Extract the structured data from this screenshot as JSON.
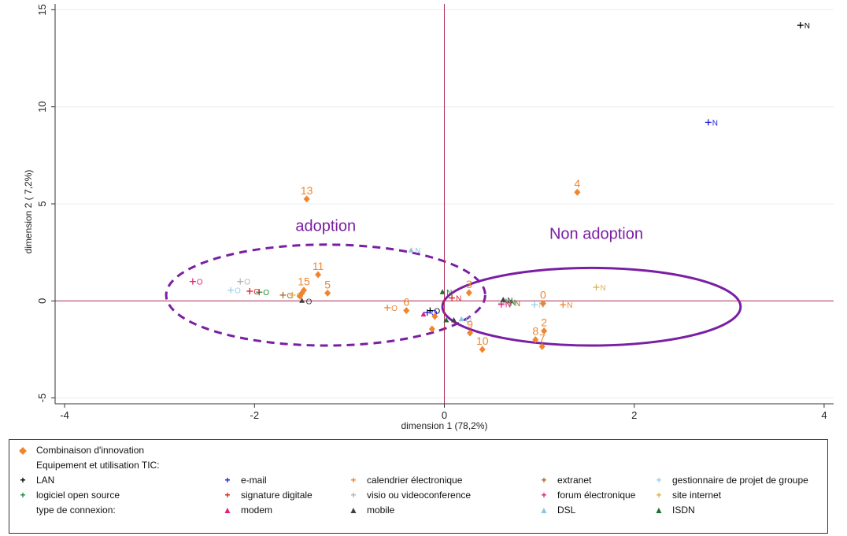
{
  "chart_data": {
    "type": "scatter",
    "xlabel": "dimension 1 (78,2%)",
    "ylabel": "dimension 2 ( 7,2%)",
    "xlim": [
      -4.1,
      4.1
    ],
    "ylim": [
      -5.3,
      15.3
    ],
    "xticks": [
      -4,
      -2,
      0,
      2,
      4
    ],
    "yticks": [
      -5,
      0,
      5,
      10,
      15
    ],
    "xtick_labels": [
      "-4",
      "-2",
      "0",
      "2",
      "4"
    ],
    "ytick_labels": [
      "-5",
      "0",
      "5",
      "10",
      "15"
    ],
    "annotations": [
      {
        "text": "adoption",
        "x": -1.25,
        "y": 3.6
      },
      {
        "text": "Non adoption",
        "x": 1.6,
        "y": 3.2
      }
    ],
    "ellipses": [
      {
        "cx": -1.25,
        "cy": 0.3,
        "rx": 1.68,
        "ry": 2.6,
        "style": "dashed"
      },
      {
        "cx": 1.55,
        "cy": -0.3,
        "rx": 1.57,
        "ry": 2.0,
        "style": "solid"
      }
    ],
    "combinations": [
      {
        "label": "13",
        "x": -1.45,
        "y": 5.25
      },
      {
        "label": "4",
        "x": 1.4,
        "y": 5.6
      },
      {
        "label": "11",
        "x": -1.33,
        "y": 1.35
      },
      {
        "label": "15",
        "x": -1.48,
        "y": 0.55
      },
      {
        "label": "",
        "x": -1.5,
        "y": 0.4
      },
      {
        "label": "",
        "x": -1.52,
        "y": 0.25
      },
      {
        "label": "5",
        "x": -1.23,
        "y": 0.4
      },
      {
        "label": "3",
        "x": 0.26,
        "y": 0.42
      },
      {
        "label": "0",
        "x": 1.04,
        "y": -0.13
      },
      {
        "label": "6",
        "x": -0.4,
        "y": -0.5
      },
      {
        "label": "",
        "x": -0.1,
        "y": -0.8
      },
      {
        "label": "",
        "x": -0.13,
        "y": -1.45
      },
      {
        "label": "9",
        "x": 0.27,
        "y": -1.65
      },
      {
        "label": "10",
        "x": 0.4,
        "y": -2.5
      },
      {
        "label": "8",
        "x": 0.96,
        "y": -2.0
      },
      {
        "label": "2",
        "x": 1.05,
        "y": -1.55
      },
      {
        "label": "7",
        "x": 1.03,
        "y": -2.35
      }
    ],
    "series": [
      {
        "name": "LAN",
        "color": "#000000",
        "marker": "plus",
        "points": [
          {
            "label": "N",
            "x": 3.75,
            "y": 14.2
          },
          {
            "label": "O",
            "x": -0.15,
            "y": -0.5
          }
        ]
      },
      {
        "name": "e-mail",
        "color": "#1a1adb",
        "marker": "plus",
        "points": [
          {
            "label": "N",
            "x": 2.78,
            "y": 9.2
          },
          {
            "label": "O",
            "x": -0.18,
            "y": -0.6
          }
        ]
      },
      {
        "name": "calendrier électronique",
        "color": "#f0852d",
        "marker": "plus",
        "points": [
          {
            "label": "N",
            "x": 1.25,
            "y": -0.2
          },
          {
            "label": "O",
            "x": -0.6,
            "y": -0.35
          }
        ]
      },
      {
        "name": "extranet",
        "color": "#a6692b",
        "marker": "plus",
        "points": [
          {
            "label": "N",
            "x": 0.7,
            "y": -0.1
          },
          {
            "label": "O",
            "x": -1.7,
            "y": 0.3
          }
        ]
      },
      {
        "name": "gestionnaire de projet de groupe",
        "color": "#9fcfe6",
        "marker": "plus",
        "points": [
          {
            "label": "N",
            "x": 0.95,
            "y": -0.2
          },
          {
            "label": "O",
            "x": -2.25,
            "y": 0.55
          }
        ]
      },
      {
        "name": "logiciel open source",
        "color": "#1e8c3a",
        "marker": "plus",
        "points": [
          {
            "label": "N",
            "x": 0.65,
            "y": -0.05
          },
          {
            "label": "O",
            "x": -1.95,
            "y": 0.45
          }
        ]
      },
      {
        "name": "signature digitale",
        "color": "#d81e1e",
        "marker": "plus",
        "points": [
          {
            "label": "N",
            "x": 0.08,
            "y": 0.15
          },
          {
            "label": "O",
            "x": -2.05,
            "y": 0.5
          }
        ]
      },
      {
        "name": "visio ou videoconference",
        "color": "#b3b3b3",
        "marker": "plus",
        "points": [
          {
            "label": "N",
            "x": 0.6,
            "y": -0.12
          },
          {
            "label": "O",
            "x": -2.15,
            "y": 1.0
          }
        ]
      },
      {
        "name": "forum électronique",
        "color": "#e0227b",
        "marker": "plus",
        "points": [
          {
            "label": "N",
            "x": 0.6,
            "y": -0.18
          },
          {
            "label": "O",
            "x": -2.65,
            "y": 1.0
          }
        ]
      },
      {
        "name": "site internet",
        "color": "#d9b252",
        "marker": "plus",
        "points": [
          {
            "label": "N",
            "x": 1.6,
            "y": 0.7
          },
          {
            "label": "O",
            "x": -1.6,
            "y": 0.3
          }
        ]
      },
      {
        "name": "modem",
        "color": "#e0227b",
        "marker": "triangle",
        "points": [
          {
            "label": "",
            "x": -0.22,
            "y": -0.7
          }
        ]
      },
      {
        "name": "mobile",
        "color": "#404040",
        "marker": "triangle",
        "points": [
          {
            "label": "O",
            "x": -1.5,
            "y": 0.0
          },
          {
            "label": "N",
            "x": 0.62,
            "y": 0.05
          },
          {
            "label": "",
            "x": 0.1,
            "y": -1.0
          }
        ]
      },
      {
        "name": "DSL",
        "color": "#8fc4dd",
        "marker": "triangle",
        "points": [
          {
            "label": "N",
            "x": -0.35,
            "y": 2.6
          },
          {
            "label": "O",
            "x": 0.18,
            "y": -0.95
          }
        ]
      },
      {
        "name": "ISDN",
        "color": "#1e6e2e",
        "marker": "triangle",
        "points": [
          {
            "label": "N",
            "x": -0.02,
            "y": 0.45
          },
          {
            "label": "",
            "x": 0.02,
            "y": -1.0
          }
        ]
      }
    ]
  },
  "legend": {
    "diamond_label": "Combinaison d'innovation",
    "group1_title": "Equipement et utilisation TIC:",
    "group2_title": "type de  connexion:",
    "row1": [
      {
        "label": "LAN",
        "color": "#000000",
        "symbol": "+"
      },
      {
        "label": "e-mail",
        "color": "#1a1adb",
        "symbol": "+"
      },
      {
        "label": "calendrier électronique",
        "color": "#f0852d",
        "symbol": "+"
      },
      {
        "label": "extranet",
        "color": "#a6692b",
        "symbol": "+"
      },
      {
        "label": "gestionnaire de projet de groupe",
        "color": "#9fcfe6",
        "symbol": "+"
      }
    ],
    "row2": [
      {
        "label": "logiciel open source",
        "color": "#1e8c3a",
        "symbol": "+"
      },
      {
        "label": "signature digitale",
        "color": "#d81e1e",
        "symbol": "+"
      },
      {
        "label": "visio ou videoconference",
        "color": "#b3b3b3",
        "symbol": "+"
      },
      {
        "label": "forum électronique",
        "color": "#e0227b",
        "symbol": "+"
      },
      {
        "label": "site internet",
        "color": "#d9b252",
        "symbol": "+"
      }
    ],
    "row3": [
      {
        "label": "modem",
        "color": "#e0227b",
        "symbol": "▲"
      },
      {
        "label": "mobile",
        "color": "#404040",
        "symbol": "▲"
      },
      {
        "label": "DSL",
        "color": "#8fc4dd",
        "symbol": "▲"
      },
      {
        "label": "ISDN",
        "color": "#1e6e2e",
        "symbol": "▲"
      }
    ]
  },
  "colors": {
    "combination": "#f0852d",
    "ellipse": "#7a1fa2",
    "reference_lines": "#b0305a",
    "gridline": "#e8eef2"
  }
}
